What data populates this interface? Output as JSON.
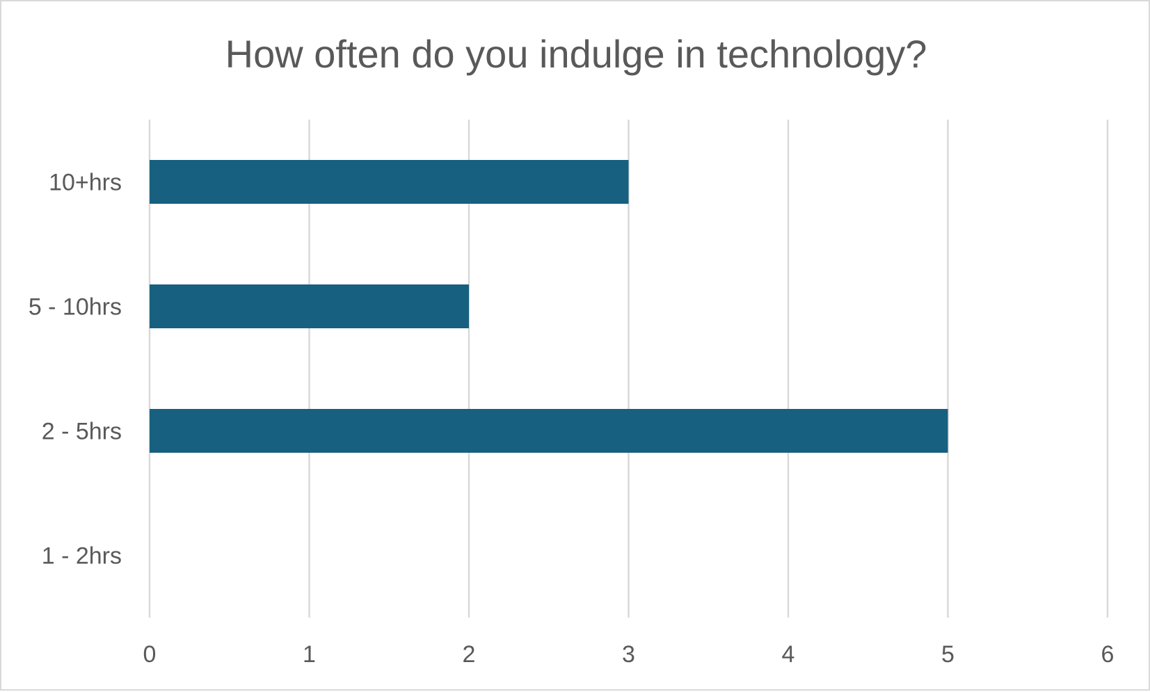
{
  "chart_data": {
    "type": "bar",
    "orientation": "horizontal",
    "title": "How often do you indulge in technology?",
    "xlabel": "",
    "ylabel": "",
    "categories": [
      "10+hrs",
      "5 - 10hrs",
      "2 - 5hrs",
      "1 - 2hrs"
    ],
    "values": [
      3,
      2,
      5,
      0
    ],
    "xlim": [
      0,
      6
    ],
    "x_ticks": [
      0,
      1,
      2,
      3,
      4,
      5,
      6
    ],
    "grid": "vertical",
    "legend": "none",
    "bar_color": "#17607f",
    "grid_color": "#d9d9d9",
    "text_color": "#595959"
  }
}
